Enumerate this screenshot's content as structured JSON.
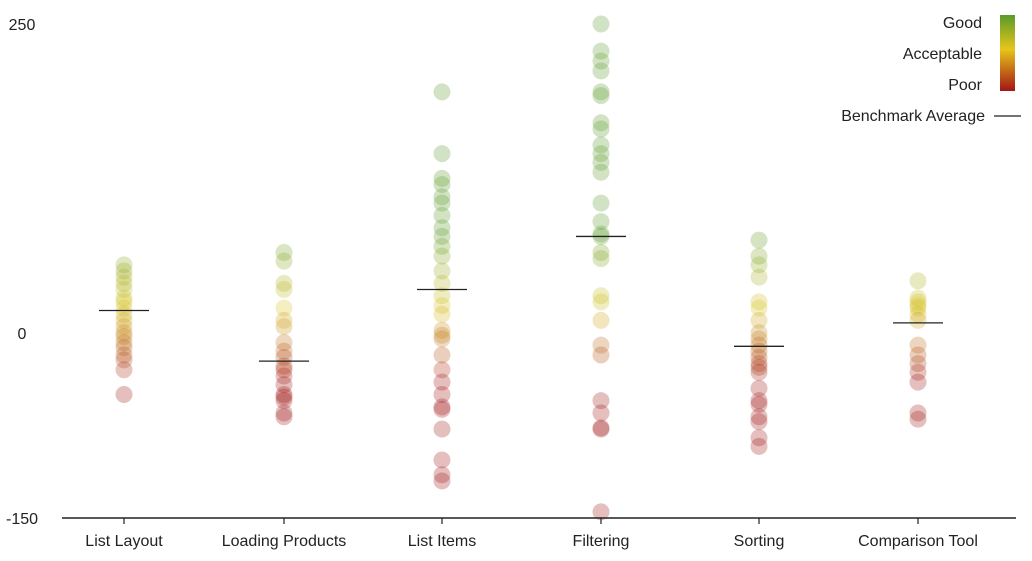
{
  "chart_data": {
    "type": "scatter",
    "title": "",
    "xlabel": "",
    "ylabel": "",
    "ylim": [
      -150,
      250
    ],
    "yticks": [
      250,
      0,
      -150
    ],
    "categories": [
      "List Layout",
      "Loading Products",
      "List Items",
      "Filtering",
      "Sorting",
      "Comparison Tool"
    ],
    "benchmark_averages": [
      18,
      -23,
      35,
      78,
      -11,
      8
    ],
    "series": [
      {
        "name": "List Layout",
        "values": [
          55,
          50,
          45,
          40,
          35,
          28,
          25,
          20,
          15,
          10,
          5,
          0,
          -3,
          -8,
          -12,
          -18,
          -22,
          -30,
          -50
        ]
      },
      {
        "name": "Loading Products",
        "values": [
          65,
          58,
          40,
          35,
          20,
          10,
          5,
          -8,
          -15,
          -20,
          -27,
          -30,
          -35,
          -42,
          -50,
          -52,
          -55,
          -65,
          -68
        ]
      },
      {
        "name": "List Items",
        "values": [
          195,
          145,
          125,
          120,
          110,
          105,
          95,
          85,
          78,
          70,
          62,
          50,
          40,
          30,
          22,
          15,
          2,
          -2,
          -5,
          -18,
          -30,
          -40,
          -50,
          -60,
          -62,
          -78,
          -103,
          -115,
          -120
        ]
      },
      {
        "name": "Filtering",
        "values": [
          250,
          228,
          220,
          212,
          195,
          192,
          170,
          165,
          152,
          145,
          138,
          130,
          105,
          90,
          80,
          78,
          65,
          60,
          30,
          25,
          10,
          -10,
          -18,
          -55,
          -65,
          -77,
          -78,
          -145
        ]
      },
      {
        "name": "Sorting",
        "values": [
          75,
          62,
          55,
          45,
          25,
          20,
          10,
          0,
          -5,
          -10,
          -15,
          -20,
          -25,
          -28,
          -32,
          -45,
          -55,
          -58,
          -68,
          -72,
          -85,
          -92
        ]
      },
      {
        "name": "Comparison Tool",
        "values": [
          42,
          28,
          25,
          22,
          20,
          15,
          10,
          -10,
          -18,
          -25,
          -32,
          -40,
          -65,
          -70
        ]
      }
    ],
    "legend": {
      "position": "top-right",
      "items": [
        "Good",
        "Acceptable",
        "Poor",
        "Benchmark Average"
      ]
    },
    "colors": {
      "good": "#5a9a2a",
      "acceptable": "#d9c21b",
      "poor": "#a31515",
      "benchmark": "#222222",
      "axis": "#222222"
    }
  }
}
